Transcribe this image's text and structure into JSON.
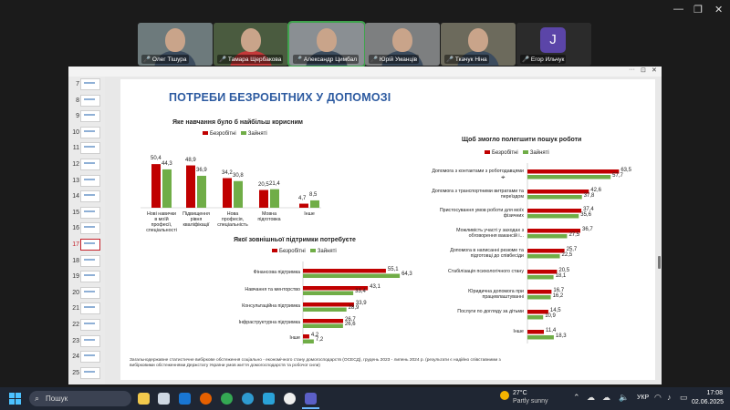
{
  "meeting": {
    "participants": [
      {
        "name": "Олег Тішура"
      },
      {
        "name": "Тамара Щербакова"
      },
      {
        "name": "Александр Цимбал"
      },
      {
        "name": "Юрій Уманців"
      },
      {
        "name": "Ткачук Ніна"
      },
      {
        "name": "Егор Ильчук",
        "initial": "J"
      }
    ]
  },
  "viewer": {
    "thumb_numbers": [
      "7",
      "8",
      "9",
      "10",
      "11",
      "12",
      "13",
      "14",
      "15",
      "16",
      "17",
      "18",
      "19",
      "20",
      "21",
      "22",
      "23",
      "24",
      "25"
    ],
    "selected": "17"
  },
  "slide": {
    "title": "ПОТРЕБИ БЕЗРОБІТНИХ У ДОПОМОЗІ",
    "legend_unemployed": "Безробітні",
    "legend_employed": "Зайняті",
    "footer": "Загальнодержавне статистичне вибіркове обстеження соціально - економічного стану домогосподарств (ОСЕСД), грудень 2023 - липень 2024 р. (результати є надійно співставними з вибірковими обстеженнями Держстату України умов життя домогосподарств та робочої сили)"
  },
  "chart_data": [
    {
      "type": "bar",
      "title": "Яке навчання було б найбільш корисним",
      "categories": [
        "Нові навички в моїй професії, спеціальності",
        "Підвищення рівня кваліфікації",
        "Нова професія, спеціальність",
        "Мовна підготовка",
        "Інше"
      ],
      "series": [
        {
          "name": "Безробітні",
          "values": [
            50.4,
            48.9,
            34.2,
            20.5,
            4.7
          ]
        },
        {
          "name": "Зайняті",
          "values": [
            44.3,
            36.9,
            30.8,
            21.4,
            8.5
          ]
        }
      ],
      "colors": [
        "#c00000",
        "#70ad47"
      ]
    },
    {
      "type": "bar",
      "orientation": "horizontal",
      "title": "Якої зовнішньої підтримки потребуєте",
      "categories": [
        "Фінансова підтримка",
        "Навчання та менторство",
        "Консультаційна підтримка",
        "Інфраструктурна підтримка",
        "Інше"
      ],
      "series": [
        {
          "name": "Безробітні",
          "values": [
            55.1,
            43.1,
            33.9,
            26.7,
            4.2
          ]
        },
        {
          "name": "Зайняті",
          "values": [
            64.3,
            33.4,
            28.9,
            26.6,
            7.2
          ]
        }
      ],
      "colors": [
        "#c00000",
        "#70ad47"
      ]
    },
    {
      "type": "bar",
      "orientation": "horizontal",
      "title": "Щоб змогло полегшити пошук роботи",
      "categories": [
        "Допомога з контактами з роботодавцями",
        "Допомога з транспортними витратами та переїздом",
        "Пристосування умов роботи для моїх фізичних",
        "Можливість участі у заходах з обговорення вакансій і...",
        "Допомога в написанні резюме та підготовці до співбесіди",
        "Стабілізація психологічного стану",
        "Юридична допомога при працевлаштуванні",
        "Послуги по догляду за дітьми",
        "Інше"
      ],
      "series": [
        {
          "name": "Безробітні",
          "values": [
            63.5,
            42.6,
            37.4,
            36.7,
            25.7,
            20.5,
            16.7,
            14.5,
            11.4
          ]
        },
        {
          "name": "Зайняті",
          "values": [
            57.7,
            37.8,
            35.6,
            27.5,
            22.5,
            18.1,
            16.2,
            10.9,
            18.3
          ]
        }
      ],
      "colors": [
        "#c00000",
        "#70ad47"
      ]
    }
  ],
  "taskbar": {
    "search_label": "Пошук",
    "weather_temp": "27°C",
    "weather_desc": "Partly sunny",
    "lang": "УКР",
    "time": "17:08",
    "date": "02.06.2025"
  }
}
